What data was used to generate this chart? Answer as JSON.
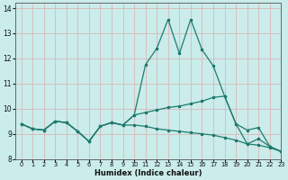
{
  "xlabel": "Humidex (Indice chaleur)",
  "xlim": [
    -0.5,
    23
  ],
  "ylim": [
    8,
    14.2
  ],
  "yticks": [
    8,
    9,
    10,
    11,
    12,
    13,
    14
  ],
  "xticks": [
    0,
    1,
    2,
    3,
    4,
    5,
    6,
    7,
    8,
    9,
    10,
    11,
    12,
    13,
    14,
    15,
    16,
    17,
    18,
    19,
    20,
    21,
    22,
    23
  ],
  "bg_color": "#caecea",
  "grid_color": "#d8b8b8",
  "line_color": "#1e7b6e",
  "line1_x": [
    0,
    1,
    2,
    3,
    4,
    5,
    6,
    7,
    8,
    9,
    10,
    11,
    12,
    13,
    14,
    15,
    16,
    17,
    18,
    19,
    20,
    21,
    22,
    23
  ],
  "line1_y": [
    9.4,
    9.2,
    9.15,
    9.5,
    9.45,
    9.1,
    8.7,
    9.3,
    9.45,
    9.35,
    9.75,
    11.75,
    12.4,
    13.55,
    12.2,
    13.55,
    12.35,
    11.7,
    10.5,
    9.4,
    9.15,
    9.25,
    8.5,
    8.3
  ],
  "line2_x": [
    0,
    1,
    2,
    3,
    4,
    5,
    6,
    7,
    8,
    9,
    10,
    11,
    12,
    13,
    14,
    15,
    16,
    17,
    18,
    19,
    20,
    21,
    22,
    23
  ],
  "line2_y": [
    9.4,
    9.2,
    9.15,
    9.5,
    9.45,
    9.1,
    8.7,
    9.3,
    9.45,
    9.35,
    9.75,
    9.85,
    9.95,
    10.05,
    10.1,
    10.2,
    10.3,
    10.45,
    10.5,
    9.4,
    8.6,
    8.8,
    8.5,
    8.3
  ],
  "line3_x": [
    0,
    1,
    2,
    3,
    4,
    5,
    6,
    7,
    8,
    9,
    10,
    11,
    12,
    13,
    14,
    15,
    16,
    17,
    18,
    19,
    20,
    21,
    22,
    23
  ],
  "line3_y": [
    9.4,
    9.2,
    9.15,
    9.5,
    9.45,
    9.1,
    8.7,
    9.3,
    9.45,
    9.35,
    9.35,
    9.3,
    9.2,
    9.15,
    9.1,
    9.05,
    9.0,
    8.95,
    8.85,
    8.75,
    8.6,
    8.55,
    8.45,
    8.3
  ]
}
